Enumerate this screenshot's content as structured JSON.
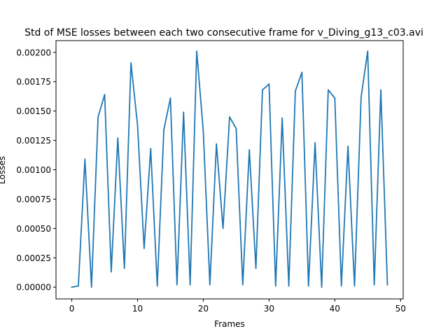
{
  "chart_data": {
    "type": "line",
    "title": "Std of MSE losses between each two consecutive frame for v_Diving_g13_c03.avi",
    "xlabel": "Frames",
    "ylabel": "Losses",
    "xlim": [
      -2.4,
      50.4
    ],
    "ylim": [
      -0.0001,
      0.0021
    ],
    "xticks": [
      0,
      10,
      20,
      30,
      40,
      50
    ],
    "yticks": [
      0.0,
      0.00025,
      0.0005,
      0.00075,
      0.001,
      0.00125,
      0.0015,
      0.00175,
      0.002
    ],
    "ytick_labels": [
      "0.00000",
      "0.00025",
      "0.00050",
      "0.00075",
      "0.00100",
      "0.00125",
      "0.00150",
      "0.00175",
      "0.00200"
    ],
    "grid": false,
    "line_color": "#1f77b4",
    "series": [
      {
        "x": [
          0,
          1,
          2,
          3,
          4,
          5,
          6,
          7,
          8,
          9,
          10,
          11,
          12,
          13,
          14,
          15,
          16,
          17,
          18,
          19,
          20,
          21,
          22,
          23,
          24,
          25,
          26,
          27,
          28,
          29,
          30,
          31,
          32,
          33,
          34,
          35,
          36,
          37,
          38,
          39,
          40,
          41,
          42,
          43,
          44,
          45,
          46,
          47,
          48
        ],
        "values": [
          0.0,
          1e-05,
          0.00109,
          0.0,
          0.00145,
          0.00164,
          0.00013,
          0.00127,
          0.00016,
          0.00191,
          0.00138,
          0.00033,
          0.00118,
          1e-05,
          0.00134,
          0.00161,
          2e-05,
          0.00149,
          2e-05,
          0.00201,
          0.00133,
          2e-05,
          0.00122,
          0.0005,
          0.00145,
          0.00135,
          2e-05,
          0.00117,
          0.00016,
          0.00168,
          0.00173,
          1e-05,
          0.00144,
          1e-05,
          0.00167,
          0.00183,
          1e-05,
          0.00123,
          0.0,
          0.00168,
          0.00161,
          1e-05,
          0.0012,
          1e-05,
          0.00162,
          0.00201,
          2e-05,
          0.00168,
          2e-05
        ]
      }
    ]
  }
}
